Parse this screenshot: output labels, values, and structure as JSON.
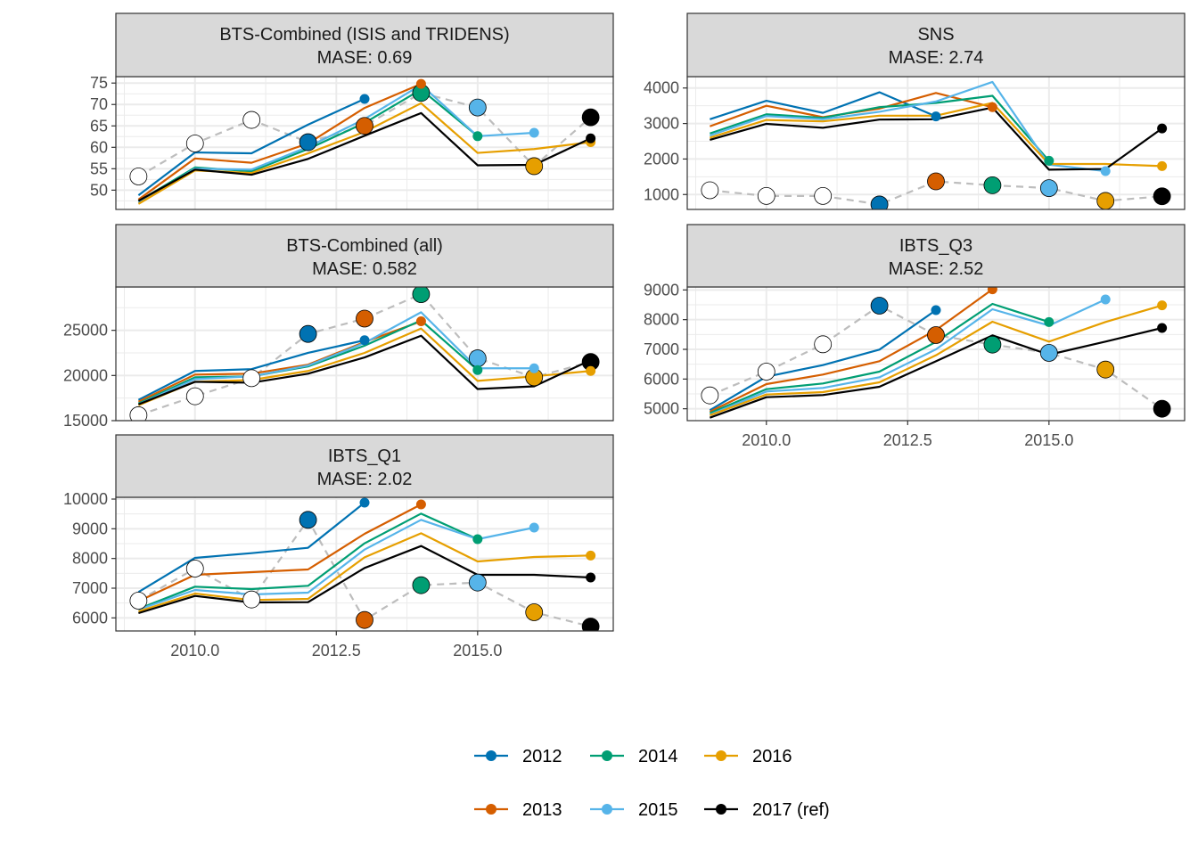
{
  "colors": {
    "2012": "#0072B2",
    "2013": "#D55E00",
    "2014": "#009E73",
    "2015": "#56B4E9",
    "2016": "#E69F00",
    "2017": "#000000",
    "observed_line": "#BDBDBD",
    "strip_fill": "#D9D9D9",
    "panel_border": "#333333",
    "grid": "#EBEBEB"
  },
  "legend": [
    {
      "key": "2012",
      "label": "2012"
    },
    {
      "key": "2013",
      "label": "2013"
    },
    {
      "key": "2014",
      "label": "2014"
    },
    {
      "key": "2015",
      "label": "2015"
    },
    {
      "key": "2016",
      "label": "2016"
    },
    {
      "key": "2017",
      "label": "2017 (ref)"
    }
  ],
  "chart_data": [
    {
      "type": "line",
      "title": "BTS-Combined (ISIS and TRIDENS)",
      "subtitle": "MASE: 0.69",
      "xlim": [
        2008.6,
        2017.4
      ],
      "ylim": [
        45.5,
        76.5
      ],
      "xticks": [
        2010.0,
        2012.5,
        2015.0
      ],
      "xtick_labels": [
        "2010.0",
        "2012.5",
        "2015.0"
      ],
      "yticks": [
        50,
        55,
        60,
        65,
        70,
        75
      ],
      "ytick_labels": [
        "50",
        "55",
        "60",
        "65",
        "70",
        "75"
      ],
      "observed": {
        "x": [
          2009,
          2010,
          2011,
          2012,
          2013,
          2014,
          2015,
          2016,
          2017
        ],
        "y": [
          53.2,
          60.9,
          66.4,
          61.2,
          65.0,
          72.7,
          69.3,
          55.6,
          67.0
        ]
      },
      "series": [
        {
          "key": "2012",
          "x": [
            2009,
            2010,
            2011,
            2012,
            2013
          ],
          "y": [
            48.8,
            58.8,
            58.6,
            65.3,
            71.3
          ]
        },
        {
          "key": "2013",
          "x": [
            2009,
            2010,
            2011,
            2012,
            2013,
            2014
          ],
          "y": [
            47.8,
            57.4,
            56.4,
            60.9,
            69.2,
            74.8
          ]
        },
        {
          "key": "2014",
          "x": [
            2009,
            2010,
            2011,
            2012,
            2013,
            2014,
            2015
          ],
          "y": [
            47.4,
            55.3,
            54.4,
            59.6,
            65.7,
            73.5,
            62.6
          ]
        },
        {
          "key": "2015",
          "x": [
            2009,
            2010,
            2011,
            2012,
            2013,
            2014,
            2015,
            2016
          ],
          "y": [
            47.0,
            55.0,
            54.8,
            60.1,
            66.6,
            74.6,
            62.6,
            63.4
          ]
        },
        {
          "key": "2016",
          "x": [
            2009,
            2010,
            2011,
            2012,
            2013,
            2014,
            2015,
            2016,
            2017
          ],
          "y": [
            46.8,
            54.6,
            54.0,
            58.6,
            63.6,
            70.3,
            58.7,
            59.6,
            61.2
          ]
        },
        {
          "key": "2017",
          "x": [
            2009,
            2010,
            2011,
            2012,
            2013,
            2014,
            2015,
            2016,
            2017
          ],
          "y": [
            47.5,
            54.8,
            53.6,
            57.3,
            62.7,
            68.0,
            55.8,
            55.9,
            62.1
          ]
        }
      ]
    },
    {
      "type": "line",
      "title": "SNS",
      "subtitle": "MASE: 2.74",
      "xlim": [
        2008.6,
        2017.4
      ],
      "ylim": [
        580,
        4320
      ],
      "xticks": [
        2010.0,
        2012.5,
        2015.0
      ],
      "xtick_labels": [
        "2010.0",
        "2012.5",
        "2015.0"
      ],
      "yticks": [
        1000,
        2000,
        3000,
        4000
      ],
      "ytick_labels": [
        "1000",
        "2000",
        "3000",
        "4000"
      ],
      "observed": {
        "x": [
          2009,
          2010,
          2011,
          2012,
          2013,
          2014,
          2015,
          2016,
          2017
        ],
        "y": [
          1120,
          960,
          960,
          720,
          1370,
          1260,
          1180,
          820,
          950
        ]
      },
      "series": [
        {
          "key": "2012",
          "x": [
            2009,
            2010,
            2011,
            2012,
            2013
          ],
          "y": [
            3120,
            3640,
            3300,
            3880,
            3200
          ]
        },
        {
          "key": "2013",
          "x": [
            2009,
            2010,
            2011,
            2012,
            2013,
            2014
          ],
          "y": [
            2920,
            3500,
            3180,
            3420,
            3860,
            3460
          ]
        },
        {
          "key": "2014",
          "x": [
            2009,
            2010,
            2011,
            2012,
            2013,
            2014,
            2015
          ],
          "y": [
            2720,
            3260,
            3160,
            3460,
            3580,
            3780,
            1950
          ]
        },
        {
          "key": "2015",
          "x": [
            2009,
            2010,
            2011,
            2012,
            2013,
            2014,
            2015,
            2016
          ],
          "y": [
            2660,
            3210,
            3120,
            3330,
            3620,
            4170,
            1840,
            1660
          ]
        },
        {
          "key": "2016",
          "x": [
            2009,
            2010,
            2011,
            2012,
            2013,
            2014,
            2015,
            2016,
            2017
          ],
          "y": [
            2600,
            3100,
            3060,
            3220,
            3220,
            3580,
            1860,
            1860,
            1800
          ]
        },
        {
          "key": "2017",
          "x": [
            2009,
            2010,
            2011,
            2012,
            2013,
            2014,
            2015,
            2016,
            2017
          ],
          "y": [
            2540,
            2990,
            2880,
            3110,
            3120,
            3450,
            1700,
            1720,
            2860
          ]
        }
      ]
    },
    {
      "type": "line",
      "title": "BTS-Combined (all)",
      "subtitle": "MASE: 0.582",
      "xlim": [
        2008.6,
        2017.4
      ],
      "ylim": [
        15000,
        29800
      ],
      "xticks": [
        2010.0,
        2012.5,
        2015.0
      ],
      "xtick_labels": [
        "2010.0",
        "2012.5",
        "2015.0"
      ],
      "yticks": [
        15000,
        20000,
        25000
      ],
      "ytick_labels": [
        "15000",
        "20000",
        "25000"
      ],
      "observed": {
        "x": [
          2009,
          2010,
          2011,
          2012,
          2013,
          2014,
          2015,
          2016,
          2017
        ],
        "y": [
          15600,
          17700,
          19700,
          24600,
          26300,
          29000,
          21900,
          19800,
          21500
        ]
      },
      "series": [
        {
          "key": "2012",
          "x": [
            2009,
            2010,
            2011,
            2012,
            2013
          ],
          "y": [
            17300,
            20500,
            20700,
            22500,
            23900
          ]
        },
        {
          "key": "2013",
          "x": [
            2009,
            2010,
            2011,
            2012,
            2013,
            2014
          ],
          "y": [
            17100,
            20100,
            20200,
            21200,
            23700,
            26000
          ]
        },
        {
          "key": "2014",
          "x": [
            2009,
            2010,
            2011,
            2012,
            2013,
            2014,
            2015
          ],
          "y": [
            16900,
            19800,
            19900,
            21000,
            23300,
            26100,
            20600
          ]
        },
        {
          "key": "2015",
          "x": [
            2009,
            2010,
            2011,
            2012,
            2013,
            2014,
            2015,
            2016
          ],
          "y": [
            16800,
            19600,
            19900,
            21100,
            23600,
            27000,
            20800,
            20800
          ]
        },
        {
          "key": "2016",
          "x": [
            2009,
            2010,
            2011,
            2012,
            2013,
            2014,
            2015,
            2016,
            2017
          ],
          "y": [
            16700,
            19300,
            19500,
            20500,
            22500,
            25200,
            19400,
            19900,
            20500
          ]
        },
        {
          "key": "2017",
          "x": [
            2009,
            2010,
            2011,
            2012,
            2013,
            2014,
            2015,
            2016,
            2017
          ],
          "y": [
            16800,
            19300,
            19200,
            20200,
            22000,
            24400,
            18500,
            18800,
            21700
          ]
        }
      ]
    },
    {
      "type": "line",
      "title": "IBTS_Q3",
      "subtitle": "MASE: 2.52",
      "xlim": [
        2008.6,
        2017.4
      ],
      "ylim": [
        4600,
        9100
      ],
      "xticks": [
        2010.0,
        2012.5,
        2015.0
      ],
      "xtick_labels": [
        "2010.0",
        "2012.5",
        "2015.0"
      ],
      "yticks": [
        5000,
        6000,
        7000,
        8000,
        9000
      ],
      "ytick_labels": [
        "5000",
        "6000",
        "7000",
        "8000",
        "9000"
      ],
      "observed": {
        "x": [
          2009,
          2010,
          2011,
          2012,
          2013,
          2014,
          2015,
          2016,
          2017
        ],
        "y": [
          5450,
          6250,
          7170,
          8470,
          7480,
          7160,
          6880,
          6320,
          5000
        ]
      },
      "series": [
        {
          "key": "2012",
          "x": [
            2009,
            2010,
            2011,
            2012,
            2013
          ],
          "y": [
            4950,
            6080,
            6470,
            6990,
            8320
          ]
        },
        {
          "key": "2013",
          "x": [
            2009,
            2010,
            2011,
            2012,
            2013,
            2014
          ],
          "y": [
            4900,
            5830,
            6150,
            6600,
            7650,
            9020
          ]
        },
        {
          "key": "2014",
          "x": [
            2009,
            2010,
            2011,
            2012,
            2013,
            2014,
            2015
          ],
          "y": [
            4850,
            5660,
            5850,
            6250,
            7250,
            8530,
            7920
          ]
        },
        {
          "key": "2015",
          "x": [
            2009,
            2010,
            2011,
            2012,
            2013,
            2014,
            2015,
            2016
          ],
          "y": [
            4800,
            5580,
            5700,
            6060,
            7000,
            8350,
            7800,
            8680
          ]
        },
        {
          "key": "2016",
          "x": [
            2009,
            2010,
            2011,
            2012,
            2013,
            2014,
            2015,
            2016,
            2017
          ],
          "y": [
            4780,
            5480,
            5560,
            5890,
            6800,
            7930,
            7260,
            7920,
            8480
          ]
        },
        {
          "key": "2017",
          "x": [
            2009,
            2010,
            2011,
            2012,
            2013,
            2014,
            2015,
            2016,
            2017
          ],
          "y": [
            4700,
            5390,
            5460,
            5740,
            6600,
            7470,
            6820,
            7260,
            7720
          ]
        }
      ]
    },
    {
      "type": "line",
      "title": "IBTS_Q1",
      "subtitle": "MASE: 2.02",
      "xlim": [
        2008.6,
        2017.4
      ],
      "ylim": [
        5560,
        10060
      ],
      "xticks": [
        2010.0,
        2012.5,
        2015.0
      ],
      "xtick_labels": [
        "2010.0",
        "2012.5",
        "2015.0"
      ],
      "yticks": [
        6000,
        7000,
        8000,
        9000,
        10000
      ],
      "ytick_labels": [
        "6000",
        "7000",
        "8000",
        "9000",
        "10000"
      ],
      "observed": {
        "x": [
          2009,
          2010,
          2011,
          2012,
          2013,
          2014,
          2015,
          2016,
          2017
        ],
        "y": [
          6580,
          7660,
          6620,
          9300,
          5930,
          7100,
          7190,
          6190,
          5710
        ]
      },
      "series": [
        {
          "key": "2012",
          "x": [
            2009,
            2010,
            2011,
            2012,
            2013
          ],
          "y": [
            6870,
            8020,
            8180,
            8360,
            9880
          ]
        },
        {
          "key": "2013",
          "x": [
            2009,
            2010,
            2011,
            2012,
            2013,
            2014
          ],
          "y": [
            6560,
            7450,
            7540,
            7630,
            8830,
            9820
          ]
        },
        {
          "key": "2014",
          "x": [
            2009,
            2010,
            2011,
            2012,
            2013,
            2014,
            2015
          ],
          "y": [
            6300,
            7050,
            6970,
            7080,
            8510,
            9510,
            8650
          ]
        },
        {
          "key": "2015",
          "x": [
            2009,
            2010,
            2011,
            2012,
            2013,
            2014,
            2015,
            2016
          ],
          "y": [
            6280,
            6940,
            6790,
            6850,
            8300,
            9300,
            8650,
            9040
          ]
        },
        {
          "key": "2016",
          "x": [
            2009,
            2010,
            2011,
            2012,
            2013,
            2014,
            2015,
            2016,
            2017
          ],
          "y": [
            6220,
            6820,
            6600,
            6640,
            8040,
            8850,
            7900,
            8050,
            8100
          ]
        },
        {
          "key": "2017",
          "x": [
            2009,
            2010,
            2011,
            2012,
            2013,
            2014,
            2015,
            2016,
            2017
          ],
          "y": [
            6160,
            6740,
            6520,
            6530,
            7680,
            8420,
            7450,
            7450,
            7360
          ]
        }
      ]
    }
  ]
}
